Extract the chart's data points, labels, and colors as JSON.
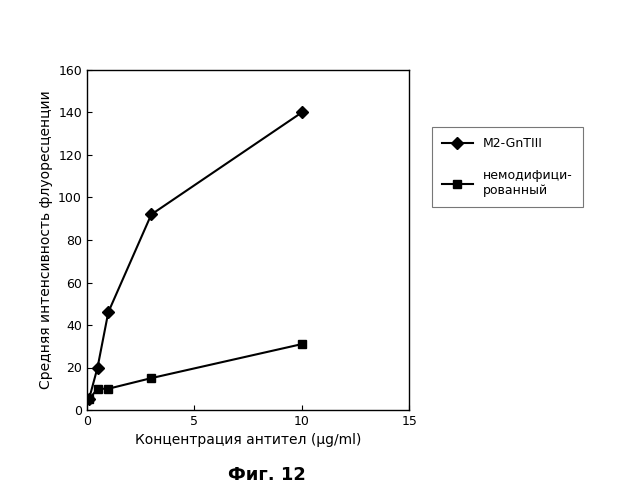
{
  "series1_name": "M2-GnTIII",
  "series1_x": [
    0.1,
    0.5,
    1.0,
    3.0,
    10.0
  ],
  "series1_y": [
    5,
    20,
    46,
    92,
    140
  ],
  "series1_color": "#000000",
  "series1_marker": "D",
  "series2_name": "немодифици-рованный",
  "series2_x": [
    0.1,
    0.5,
    1.0,
    3.0,
    10.0
  ],
  "series2_y": [
    5,
    10,
    10,
    15,
    31
  ],
  "series2_color": "#000000",
  "series2_marker": "s",
  "xlabel": "Концентрация антител (μg/ml)",
  "ylabel": "Средняя интенсивность флуоресценции",
  "xlim": [
    0,
    15
  ],
  "ylim": [
    0,
    160
  ],
  "xticks": [
    0,
    5,
    10,
    15
  ],
  "yticks": [
    0,
    20,
    40,
    60,
    80,
    100,
    120,
    140,
    160
  ],
  "figure_caption": "Фиг. 12",
  "bg_color": "#ffffff",
  "plot_bg_color": "#ffffff",
  "legend_name1": "M2-GnTIII",
  "legend_name2_line1": "немодифици-",
  "legend_name2_line2": "рованный",
  "plot_right_end": 11.5
}
